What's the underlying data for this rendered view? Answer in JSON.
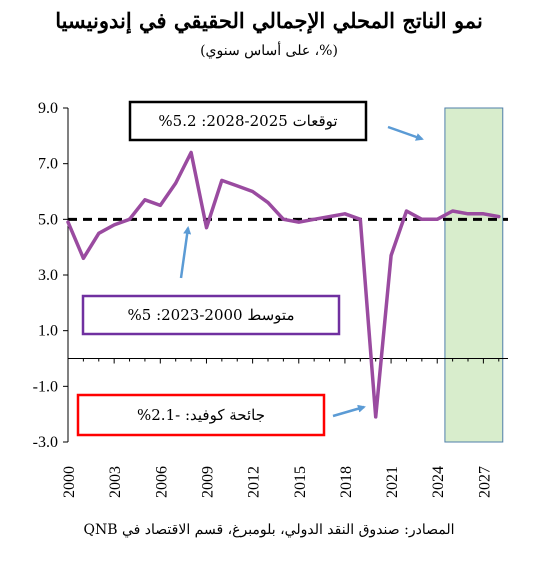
{
  "title": "نمو الناتج المحلي الإجمالي الحقيقي في إندونيسيا",
  "subtitle": "(%، على أساس سنوي)",
  "source": "المصادر: صندوق النقد الدولي، بلومبرغ، قسم الاقتصاد في QNB",
  "colors": {
    "series": "#9a4ba0",
    "average_line": "#000000",
    "forecast_fill": "#d8edcc",
    "forecast_border": "#4f7faa",
    "arrow": "#5b9bd5",
    "box_forecast": "#000000",
    "box_average": "#7030a0",
    "box_covid": "#ff0000"
  },
  "annotations": {
    "forecast": "توقعات 2025-2028:  5.2%",
    "average": "متوسط 2000-2023:  5%",
    "covid": "جائحة كوفيد: -2.1%"
  },
  "chart_data": {
    "type": "line",
    "title": "نمو الناتج المحلي الإجمالي الحقيقي في إندونيسيا",
    "ylim": [
      -3.0,
      9.0
    ],
    "yticks": [
      "9.0",
      "7.0",
      "5.0",
      "3.0",
      "1.0",
      "-1.0",
      "-3.0"
    ],
    "xticks": [
      "2000",
      "2003",
      "2006",
      "2009",
      "2012",
      "2015",
      "2018",
      "2021",
      "2024",
      "2027"
    ],
    "x": [
      2000,
      2001,
      2002,
      2003,
      2004,
      2005,
      2006,
      2007,
      2008,
      2009,
      2010,
      2011,
      2012,
      2013,
      2014,
      2015,
      2016,
      2017,
      2018,
      2019,
      2020,
      2021,
      2022,
      2023,
      2024,
      2025,
      2026,
      2027,
      2028
    ],
    "series": [
      {
        "values": [
          4.9,
          3.6,
          4.5,
          4.8,
          5.0,
          5.7,
          5.5,
          6.3,
          7.4,
          4.7,
          6.4,
          6.2,
          6.0,
          5.6,
          5.0,
          4.9,
          5.0,
          5.1,
          5.2,
          5.0,
          -2.1,
          3.7,
          5.3,
          5.0,
          5.0,
          5.3,
          5.2,
          5.2,
          5.1
        ]
      }
    ],
    "average": 5.0,
    "forecast_range": [
      2024.5,
      2028.0
    ]
  }
}
